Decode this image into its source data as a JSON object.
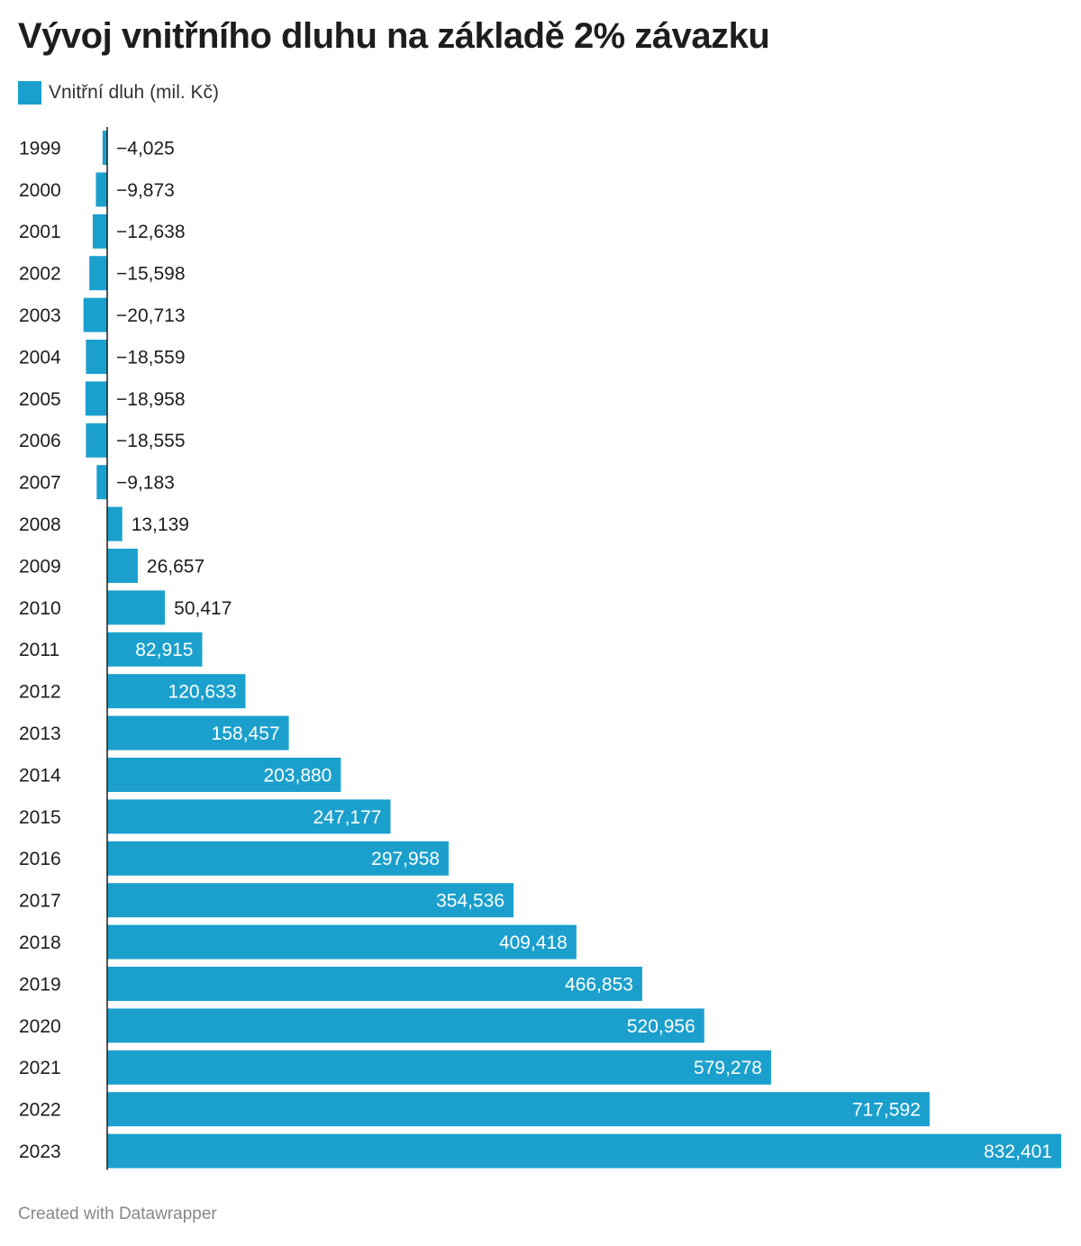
{
  "chart_data": {
    "type": "bar",
    "orientation": "horizontal",
    "title": "Vývoj vnitřního dluhu na základě 2% závazku",
    "legend": {
      "label": "Vnitřní dluh (mil. Kč)",
      "color": "#1ba0cd",
      "placement": "top-left"
    },
    "categories": [
      "1999",
      "2000",
      "2001",
      "2002",
      "2003",
      "2004",
      "2005",
      "2006",
      "2007",
      "2008",
      "2009",
      "2010",
      "2011",
      "2012",
      "2013",
      "2014",
      "2015",
      "2016",
      "2017",
      "2018",
      "2019",
      "2020",
      "2021",
      "2022",
      "2023"
    ],
    "values": [
      -4025,
      -9873,
      -12638,
      -15598,
      -20713,
      -18559,
      -18958,
      -18555,
      -9183,
      13139,
      26657,
      50417,
      82915,
      120633,
      158457,
      203880,
      247177,
      297958,
      354536,
      409418,
      466853,
      520956,
      579278,
      717592,
      832401
    ],
    "labels": [
      "−4,025",
      "−9,873",
      "−12,638",
      "−15,598",
      "−20,713",
      "−18,559",
      "−18,958",
      "−18,555",
      "−9,183",
      "13,139",
      "26,657",
      "50,417",
      "82,915",
      "120,633",
      "158,457",
      "203,880",
      "247,177",
      "297,958",
      "354,536",
      "409,418",
      "466,853",
      "520,956",
      "579,278",
      "717,592",
      "832,401"
    ],
    "bar_color": "#1ba0cd",
    "xlim": [
      -20713,
      832401
    ],
    "grid": false
  },
  "footer": "Created with Datawrapper"
}
